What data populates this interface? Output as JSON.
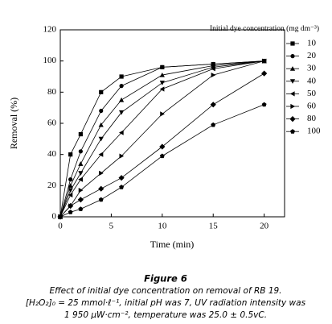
{
  "chart_data": {
    "type": "line",
    "x_label": "Time (min)",
    "y_label": "Removal (%)",
    "legend_title": "Initial dye concentration (mg dm⁻³)",
    "x": [
      0,
      1,
      2,
      4,
      6,
      10,
      15,
      20
    ],
    "xlim": [
      0,
      22
    ],
    "xticks": [
      0,
      5,
      10,
      15,
      20
    ],
    "ylim": [
      0,
      120
    ],
    "yticks": [
      0,
      20,
      40,
      60,
      80,
      100,
      120
    ],
    "series": [
      {
        "name": "10",
        "color": "#000000",
        "marker": "square",
        "values": [
          0,
          40,
          53,
          80,
          90,
          96,
          98,
          100
        ]
      },
      {
        "name": "20",
        "color": "#000000",
        "marker": "circle",
        "values": [
          0,
          24,
          42,
          68,
          84,
          96,
          98,
          100
        ]
      },
      {
        "name": "30",
        "color": "#000000",
        "marker": "triangle-up",
        "values": [
          0,
          20,
          34,
          59,
          75,
          91,
          97,
          100
        ]
      },
      {
        "name": "40",
        "color": "#000000",
        "marker": "triangle-down",
        "values": [
          0,
          17,
          28,
          50,
          67,
          86,
          96,
          100
        ]
      },
      {
        "name": "50",
        "color": "#000000",
        "marker": "triangle-left",
        "values": [
          0,
          14,
          24,
          40,
          54,
          82,
          95,
          100
        ]
      },
      {
        "name": "60",
        "color": "#000000",
        "marker": "triangle-right",
        "values": [
          0,
          7,
          17,
          28,
          39,
          66,
          91,
          100
        ]
      },
      {
        "name": "80",
        "color": "#000000",
        "marker": "diamond",
        "values": [
          0,
          7,
          11,
          18,
          25,
          45,
          72,
          92
        ]
      },
      {
        "name": "100",
        "color": "#000000",
        "marker": "pentagon",
        "values": [
          0,
          3,
          5,
          11,
          19,
          39,
          59,
          72
        ]
      }
    ]
  },
  "caption": {
    "figure": "Figure 6",
    "lines": [
      "Effect of initial dye concentration on removal of RB 19.",
      "[H₂O₂]₀ = 25 mmol·ℓ⁻¹, initial pH was 7, UV radiation intensity was",
      "1 950 µW·cm⁻², temperature was 25.0 ± 0.5vC."
    ]
  }
}
